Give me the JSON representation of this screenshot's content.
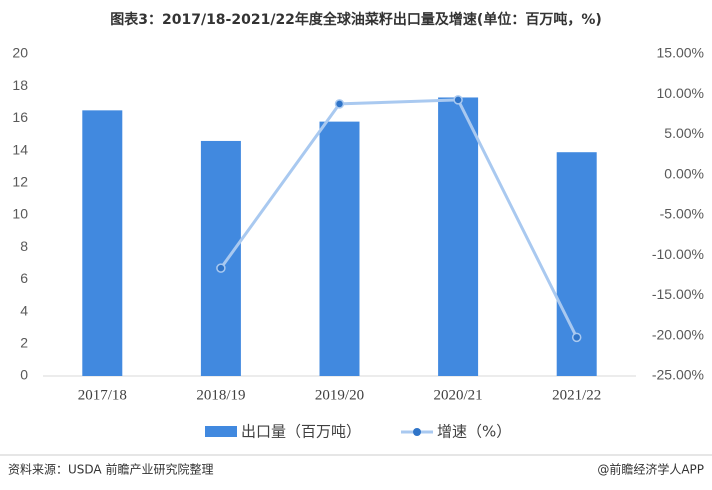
{
  "chart_data": {
    "type": "bar-line",
    "title": "图表3：2017/18-2021/22年度全球油菜籽出口量及增速(单位：百万吨，%)",
    "categories": [
      "2017/18",
      "2018/19",
      "2019/20",
      "2020/21",
      "2021/22"
    ],
    "series": [
      {
        "name": "出口量（百万吨）",
        "type": "bar",
        "color": "#4189df",
        "values": [
          16.5,
          14.6,
          15.8,
          17.3,
          13.9
        ]
      },
      {
        "name": "增速（%）",
        "type": "line",
        "axis": "y2",
        "color": "#a9c9f0",
        "marker_color": "#2f74c8",
        "values": [
          null,
          -11.6,
          8.8,
          9.3,
          -20.2
        ]
      }
    ],
    "ylim": [
      0,
      20
    ],
    "yticks": [
      0,
      2,
      4,
      6,
      8,
      10,
      12,
      14,
      16,
      18,
      20
    ],
    "y2lim": [
      -25,
      15
    ],
    "y2ticks": [
      {
        "value": -25,
        "label": "-25.00%"
      },
      {
        "value": -20,
        "label": "-20.00%"
      },
      {
        "value": -15,
        "label": "-15.00%"
      },
      {
        "value": -10,
        "label": "-10.00%"
      },
      {
        "value": -5,
        "label": "-5.00%"
      },
      {
        "value": 0,
        "label": "0.00%"
      },
      {
        "value": 5,
        "label": "5.00%"
      },
      {
        "value": 10,
        "label": "10.00%"
      },
      {
        "value": 15,
        "label": "15.00%"
      }
    ],
    "legend": "bottom",
    "source": "资料来源：USDA 前瞻产业研究院整理",
    "credit": "@前瞻经济学人APP"
  }
}
